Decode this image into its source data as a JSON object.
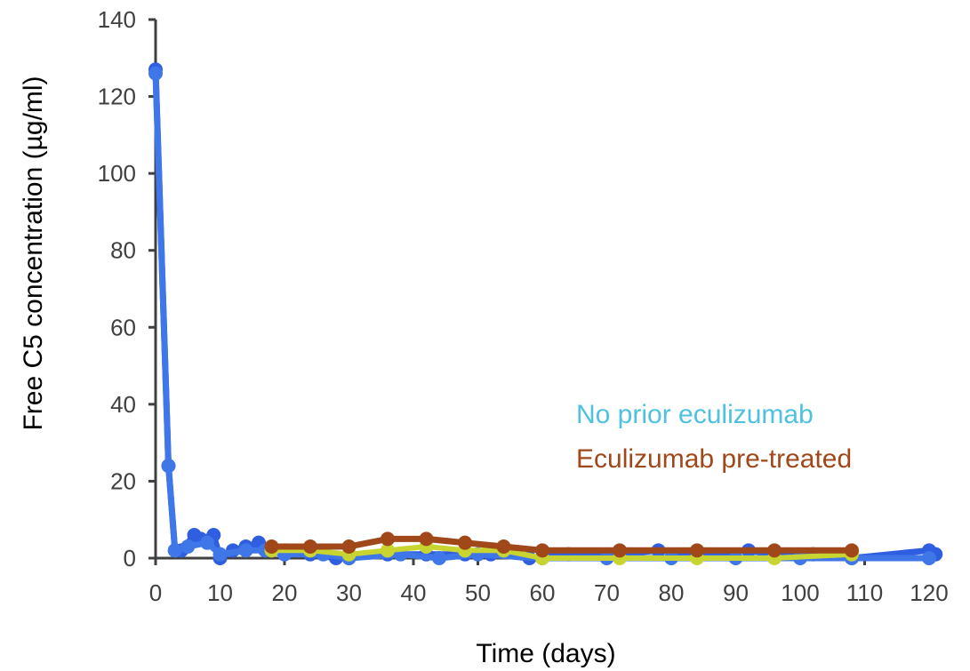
{
  "chart_data": {
    "type": "line",
    "title": "",
    "xlabel": "Time (days)",
    "ylabel": "Free C5 concentration (µg/ml)",
    "xlim": [
      0,
      120
    ],
    "ylim": [
      0,
      140
    ],
    "x_ticks": [
      0,
      10,
      20,
      30,
      40,
      50,
      60,
      70,
      80,
      90,
      100,
      110,
      120
    ],
    "y_ticks": [
      0,
      20,
      40,
      60,
      80,
      100,
      120,
      140
    ],
    "grid": false,
    "legend_position": "right",
    "legend": [
      {
        "label": "No prior eculizumab",
        "color": "#4fc1e0"
      },
      {
        "label": "Eculizumab pre-treated",
        "color": "#a0481a"
      }
    ],
    "series": [
      {
        "color": "#2f5fe0",
        "line_width": 7,
        "points": [
          [
            0,
            127
          ],
          [
            2,
            24
          ],
          [
            3,
            2
          ],
          [
            4,
            2
          ],
          [
            6,
            6
          ],
          [
            7,
            5
          ],
          [
            9,
            6
          ],
          [
            10,
            0
          ],
          [
            12,
            2
          ],
          [
            14,
            3
          ],
          [
            16,
            4
          ],
          [
            18,
            2
          ],
          [
            20,
            2
          ],
          [
            24,
            1
          ],
          [
            28,
            0
          ],
          [
            30,
            0
          ],
          [
            36,
            1
          ],
          [
            42,
            1
          ],
          [
            48,
            1
          ],
          [
            52,
            1
          ],
          [
            58,
            0
          ],
          [
            64,
            1
          ],
          [
            72,
            1
          ],
          [
            78,
            2
          ],
          [
            84,
            1
          ],
          [
            92,
            2
          ],
          [
            96,
            1
          ],
          [
            102,
            1
          ],
          [
            108,
            0
          ],
          [
            120,
            2
          ],
          [
            121,
            1
          ]
        ]
      },
      {
        "color": "#3f76e8",
        "line_width": 7,
        "points": [
          [
            0,
            126
          ],
          [
            2,
            24
          ],
          [
            3,
            2
          ],
          [
            5,
            3
          ],
          [
            8,
            4
          ],
          [
            10,
            1
          ],
          [
            14,
            2
          ],
          [
            17,
            2
          ],
          [
            20,
            1
          ],
          [
            26,
            1
          ],
          [
            30,
            0
          ],
          [
            38,
            1
          ],
          [
            44,
            0
          ],
          [
            50,
            1
          ],
          [
            60,
            0
          ],
          [
            70,
            0
          ],
          [
            80,
            0
          ],
          [
            90,
            0
          ],
          [
            100,
            0
          ],
          [
            108,
            0
          ],
          [
            120,
            0
          ]
        ]
      },
      {
        "color": "#c8d530",
        "line_width": 6,
        "points": [
          [
            18,
            2
          ],
          [
            24,
            2
          ],
          [
            30,
            1
          ],
          [
            36,
            2
          ],
          [
            42,
            3
          ],
          [
            48,
            2
          ],
          [
            54,
            2
          ],
          [
            60,
            0
          ],
          [
            72,
            0
          ],
          [
            84,
            0
          ],
          [
            96,
            0
          ],
          [
            108,
            1
          ]
        ]
      },
      {
        "color": "#a0481a",
        "line_width": 7,
        "points": [
          [
            18,
            3
          ],
          [
            24,
            3
          ],
          [
            30,
            3
          ],
          [
            36,
            5
          ],
          [
            42,
            5
          ],
          [
            48,
            4
          ],
          [
            54,
            3
          ],
          [
            60,
            2
          ],
          [
            72,
            2
          ],
          [
            84,
            2
          ],
          [
            96,
            2
          ],
          [
            108,
            2
          ]
        ]
      }
    ]
  }
}
